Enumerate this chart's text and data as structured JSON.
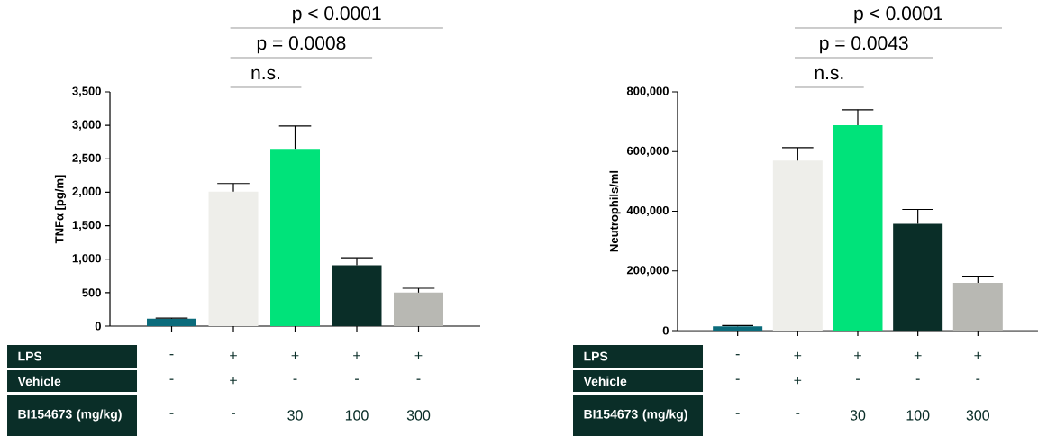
{
  "chart_data": [
    {
      "type": "bar",
      "ylabel": "TNFα [pg/m]",
      "categories": [
        null,
        null,
        null,
        null,
        null
      ],
      "values": [
        110,
        2010,
        2650,
        910,
        500
      ],
      "errors": [
        [
          110,
          120
        ],
        [
          2010,
          2130
        ],
        [
          2650,
          2990
        ],
        [
          910,
          1020
        ],
        [
          500,
          565
        ]
      ],
      "colors": [
        "#0b6b7b",
        "#eeeeea",
        "#00e37a",
        "#0a2e28",
        "#b8b8b3"
      ],
      "ylim": [
        0,
        3500
      ],
      "yticks": [
        0,
        {
          "value": 500,
          "label": "500"
        },
        {
          "value": 1000,
          "label": "1,000"
        },
        {
          "value": 1500,
          "label": "1,500"
        },
        {
          "value": 2000,
          "label": "2,000"
        },
        {
          "value": 2500,
          "label": "2,500"
        },
        {
          "value": 3000,
          "label": "3,000"
        },
        {
          "value": 3500,
          "label": "3,500"
        }
      ],
      "annotations": [
        "n.s.",
        "p = 0.0008",
        "p < 0.0001",
        "LPS",
        "Vehicle",
        "BI154673 (mg/kg)",
        "-",
        "+",
        "+",
        "+",
        "+",
        "-",
        "+",
        "-",
        "-",
        "-",
        "-",
        "-",
        "30",
        "100",
        "300"
      ]
    },
    {
      "type": "bar",
      "ylabel": "Neutrophils/ml",
      "categories": [
        null,
        null,
        null,
        null,
        null
      ],
      "values": [
        14000,
        570000,
        688000,
        358000,
        160000
      ],
      "errors": [
        [
          14000,
          17000
        ],
        [
          570000,
          613000
        ],
        [
          688000,
          740000
        ],
        [
          358000,
          406000
        ],
        [
          160000,
          182000
        ]
      ],
      "colors": [
        "#0b6b7b",
        "#eeeeea",
        "#00e37a",
        "#0a2e28",
        "#b8b8b3"
      ],
      "ylim": [
        0,
        800000
      ],
      "yticks": [
        0,
        {
          "value": 200000,
          "label": "200,000"
        },
        {
          "value": 400000,
          "label": "400,000"
        },
        {
          "value": 600000,
          "label": "600,000"
        },
        {
          "value": 800000,
          "label": "800,000"
        }
      ],
      "annotations": [
        "n.s.",
        "p = 0.0043",
        "p < 0.0001",
        "LPS",
        "Vehicle",
        "BI154673 (mg/kg)",
        "-",
        "+",
        "+",
        "+",
        "+",
        "-",
        "+",
        "-",
        "-",
        "-",
        "-",
        "-",
        "30",
        "100",
        "300"
      ]
    }
  ]
}
